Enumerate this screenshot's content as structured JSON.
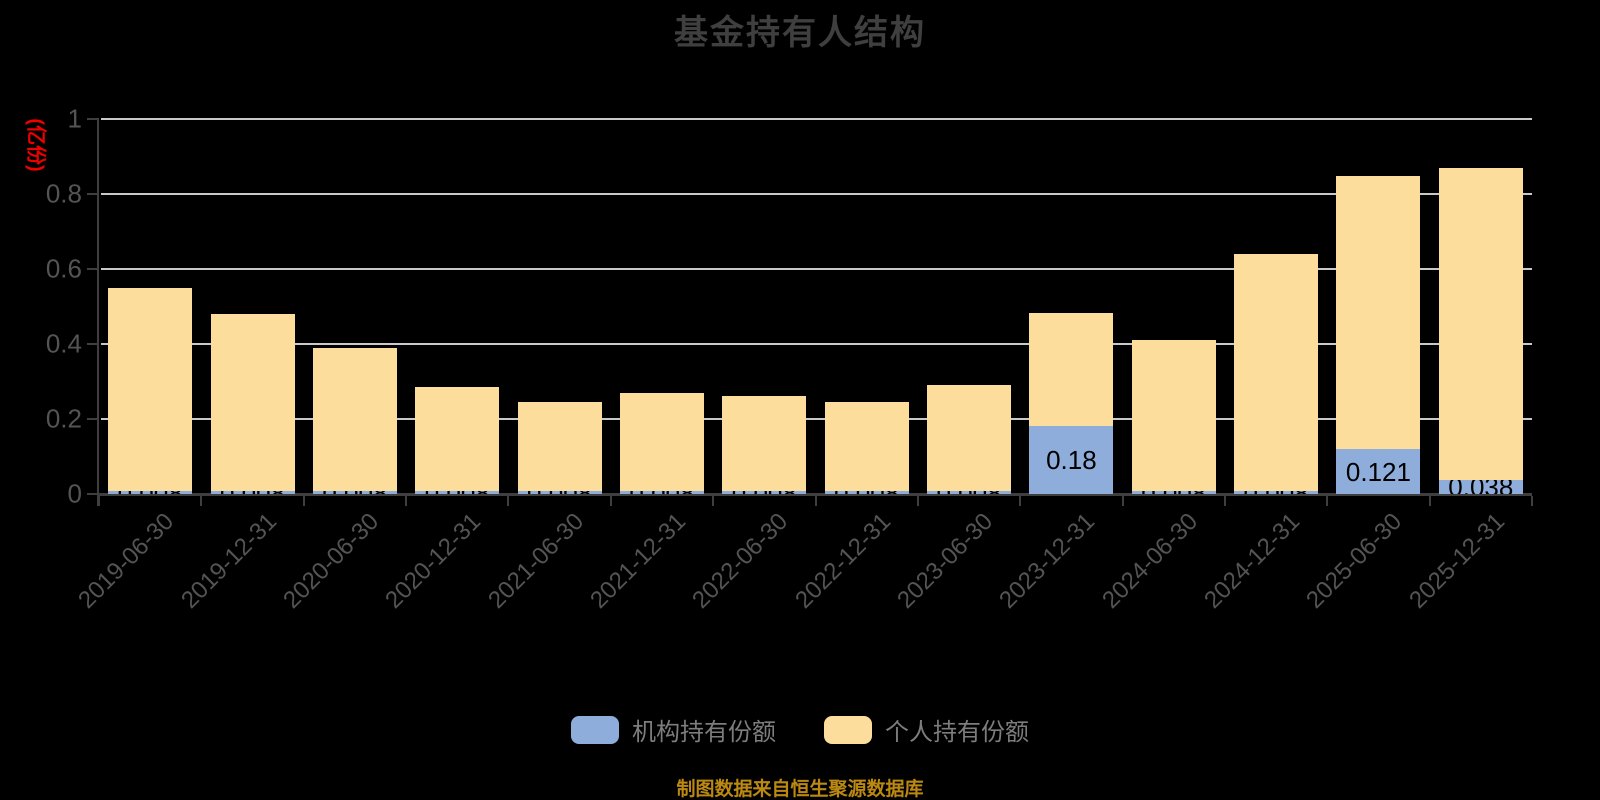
{
  "footer": "制图数据来自恒生聚源数据库",
  "colors": {
    "background": "#000000",
    "title": "#3f3f3f",
    "axis_line": "#3f3f3f",
    "gridline": "#c9c9c9",
    "tick_label": "#545454",
    "y_unit_label": "#ee0000",
    "legend_label": "#7d7d7d",
    "footer": "#bb8912",
    "institution": "#8eaddb",
    "personal": "#fddd9b",
    "bar_value_label": "#000000"
  },
  "chart_data": {
    "type": "bar",
    "stacked": true,
    "title": "基金持有人结构",
    "ylabel": "(亿份)",
    "xlabel": "",
    "ylim": [
      0,
      1
    ],
    "yticks": [
      0,
      0.2,
      0.4,
      0.6,
      0.8,
      1
    ],
    "grid": true,
    "legend_position": "bottom",
    "categories": [
      "2019-06-30",
      "2019-12-31",
      "2020-06-30",
      "2020-12-31",
      "2021-06-30",
      "2021-12-31",
      "2022-06-30",
      "2022-12-31",
      "2023-06-30",
      "2023-12-31",
      "2024-06-30",
      "2024-12-31",
      "2025-06-30",
      "2025-12-31"
    ],
    "series": [
      {
        "name": "机构持有份额",
        "color": "#8eaddb",
        "values": [
          0.008,
          0.008,
          0.008,
          0.008,
          0.008,
          0.008,
          0.008,
          0.008,
          0.008,
          0.18,
          0.008,
          0.008,
          0.121,
          0.038
        ],
        "value_labels": [
          "0.008",
          "0.008",
          "0.008",
          "0.008",
          "0.008",
          "0.008",
          "0.008",
          "0.008",
          "0.008",
          "0.18",
          "0.008",
          "0.008",
          "0.121",
          "0.038"
        ]
      },
      {
        "name": "个人持有份额",
        "color": "#fddd9b",
        "values": [
          0.542,
          0.472,
          0.382,
          0.277,
          0.237,
          0.262,
          0.252,
          0.237,
          0.282,
          0.3,
          0.402,
          0.632,
          0.729,
          0.832
        ]
      }
    ]
  }
}
